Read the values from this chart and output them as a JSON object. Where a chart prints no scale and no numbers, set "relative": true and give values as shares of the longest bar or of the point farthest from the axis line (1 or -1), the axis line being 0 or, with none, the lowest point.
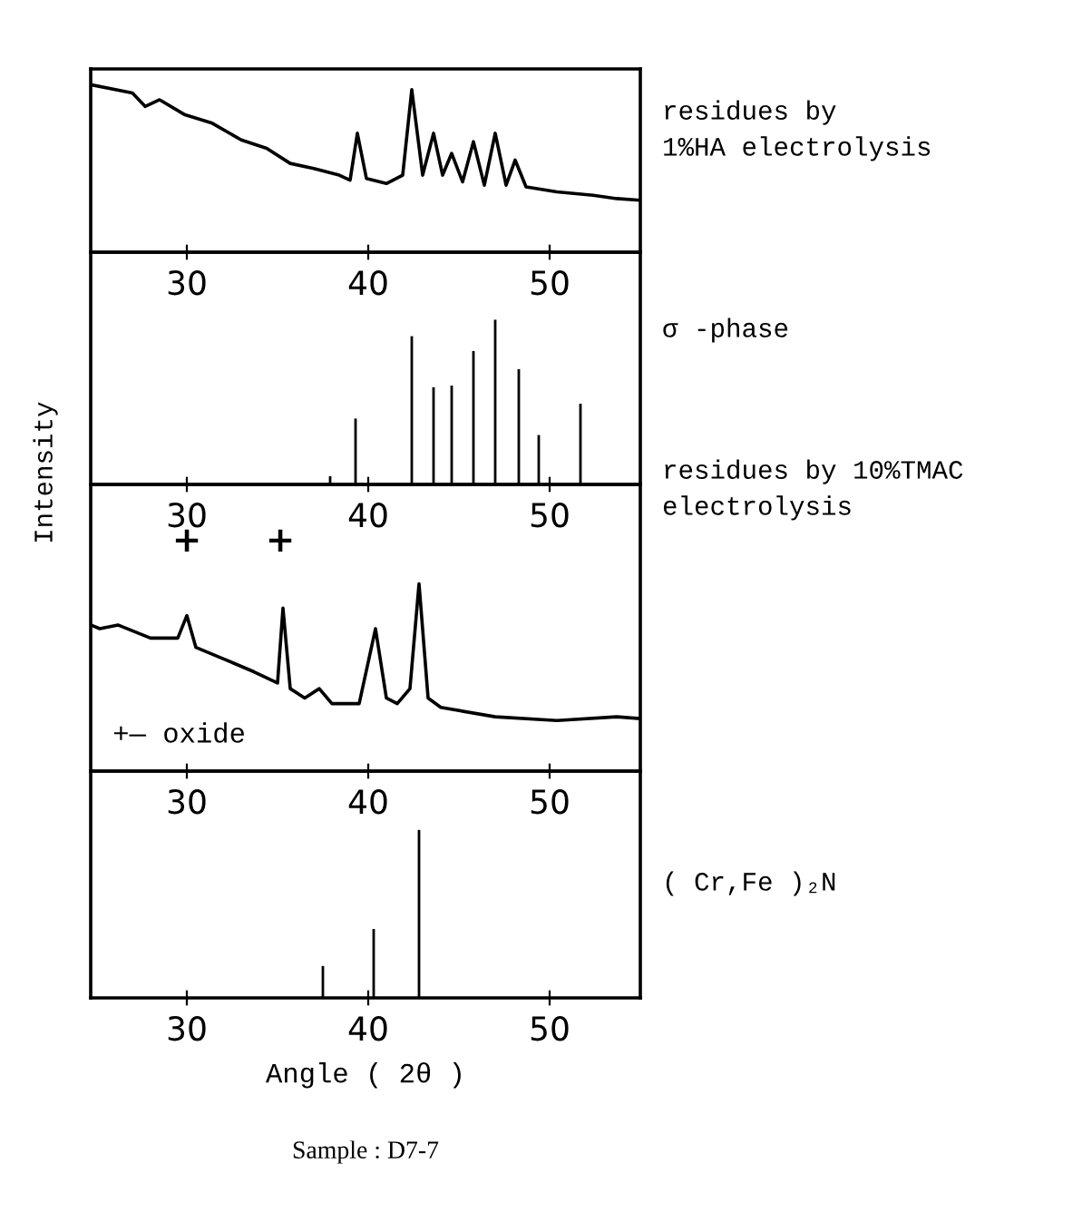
{
  "chart_data": [
    {
      "type": "line",
      "relative": true,
      "color": "#000000",
      "xlim": [
        24.7,
        55
      ],
      "xticks": [
        30,
        40,
        50
      ],
      "x": [
        24.7,
        27.0,
        27.7,
        28.5,
        29.9,
        31.4,
        33.0,
        34.4,
        35.7,
        37.0,
        38.4,
        39.0,
        39.4,
        39.9,
        41.0,
        41.9,
        42.4,
        43.0,
        43.6,
        44.1,
        44.6,
        45.2,
        45.8,
        46.4,
        47.0,
        47.6,
        48.1,
        48.7,
        50.4,
        52.4,
        53.7,
        55.0
      ],
      "values": [
        1.0,
        0.95,
        0.87,
        0.91,
        0.82,
        0.77,
        0.67,
        0.62,
        0.53,
        0.5,
        0.46,
        0.43,
        0.71,
        0.44,
        0.41,
        0.46,
        0.97,
        0.46,
        0.71,
        0.46,
        0.59,
        0.42,
        0.66,
        0.4,
        0.71,
        0.4,
        0.55,
        0.39,
        0.36,
        0.34,
        0.32,
        0.31
      ]
    },
    {
      "type": "bar",
      "ylabel": "Intensity",
      "relative": true,
      "color": "#000000",
      "xlim": [
        24.7,
        55
      ],
      "xticks": [
        30,
        40,
        50
      ],
      "x": [
        37.9,
        39.3,
        42.4,
        43.6,
        44.6,
        45.8,
        47.0,
        48.3,
        49.4,
        51.7
      ],
      "values": [
        0.05,
        0.4,
        0.9,
        0.59,
        0.6,
        0.81,
        1.0,
        0.7,
        0.3,
        0.49
      ]
    },
    {
      "type": "line",
      "relative": true,
      "color": "#000000",
      "xlim": [
        24.7,
        55
      ],
      "xticks": [
        30,
        40,
        50
      ],
      "x": [
        24.7,
        25.2,
        26.2,
        28.0,
        29.5,
        30.0,
        30.5,
        32.0,
        33.7,
        35.0,
        35.3,
        35.7,
        36.5,
        37.3,
        38.0,
        39.5,
        40.4,
        41.0,
        41.6,
        42.3,
        42.8,
        43.3,
        44.0,
        47.0,
        50.4,
        53.7,
        55.0
      ],
      "values": [
        0.78,
        0.76,
        0.78,
        0.71,
        0.71,
        0.83,
        0.66,
        0.6,
        0.53,
        0.47,
        0.87,
        0.44,
        0.39,
        0.44,
        0.36,
        0.36,
        0.76,
        0.39,
        0.36,
        0.44,
        1.0,
        0.39,
        0.34,
        0.29,
        0.27,
        0.29,
        0.28
      ],
      "annotations": [
        "+",
        "+",
        "+— oxide"
      ]
    },
    {
      "type": "bar",
      "xlabel": "Angle ( 2θ )",
      "relative": true,
      "color": "#000000",
      "xlim": [
        24.7,
        55
      ],
      "xticks": [
        30,
        40,
        50
      ],
      "x": [
        37.5,
        40.3,
        42.8
      ],
      "values": [
        0.19,
        0.41,
        1.0
      ],
      "annotations": [
        "Sample : D7-7"
      ]
    },
    {
      "type": "other",
      "annotations": [
        "residues by\n1%HA electrolysis",
        "σ -phase",
        "residues by 10%TMAC\nelectrolysis",
        "( Cr,Fe )₂N"
      ]
    }
  ]
}
